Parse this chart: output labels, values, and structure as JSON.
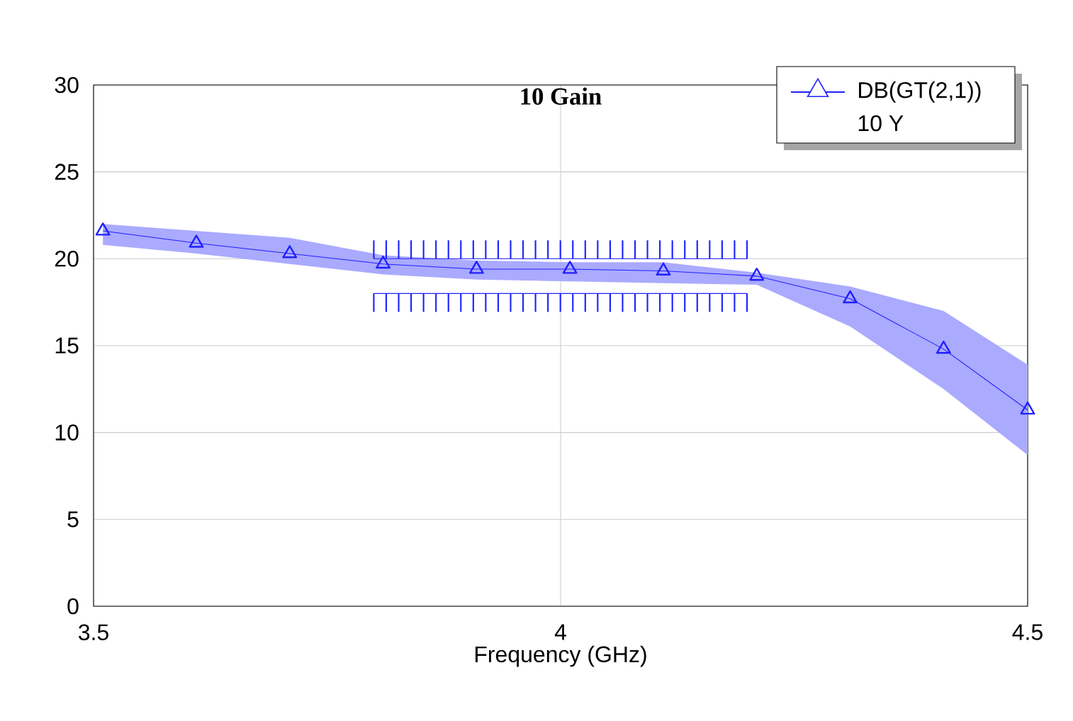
{
  "chart_data": {
    "type": "line",
    "title": "10 Gain",
    "xlabel": "Frequency (GHz)",
    "xlim": [
      3.5,
      4.5
    ],
    "xticks": [
      3.5,
      4,
      4.5
    ],
    "ylim": [
      0,
      30
    ],
    "yticks": [
      0,
      5,
      10,
      15,
      20,
      25,
      30
    ],
    "grid": true,
    "legend": "top right",
    "line_style": "solid",
    "annotations": [
      "10 Y"
    ],
    "series": [
      {
        "name": "DB(GT(2,1))",
        "color": "#2020ff",
        "marker": "triangle",
        "x": [
          3.51,
          3.61,
          3.71,
          3.81,
          3.91,
          4.01,
          4.11,
          4.21,
          4.31,
          4.41,
          4.5
        ],
        "values": [
          21.6,
          20.9,
          20.3,
          19.7,
          19.4,
          19.4,
          19.3,
          19.0,
          17.7,
          14.8,
          11.3
        ],
        "lower": [
          20.8,
          20.3,
          19.7,
          19.1,
          18.8,
          18.7,
          18.6,
          18.5,
          16.1,
          12.5,
          8.7
        ],
        "upper": [
          22.0,
          21.6,
          21.2,
          20.2,
          19.9,
          19.8,
          19.8,
          19.2,
          18.4,
          17.0,
          13.9
        ]
      },
      {
        "color": "#2020ff",
        "marker": "none",
        "x": [
          3.8,
          4.2
        ],
        "values": [
          20,
          20
        ]
      },
      {
        "color": "#2020ff",
        "marker": "none",
        "x": [
          3.8,
          4.2
        ],
        "values": [
          18,
          18
        ]
      }
    ]
  }
}
